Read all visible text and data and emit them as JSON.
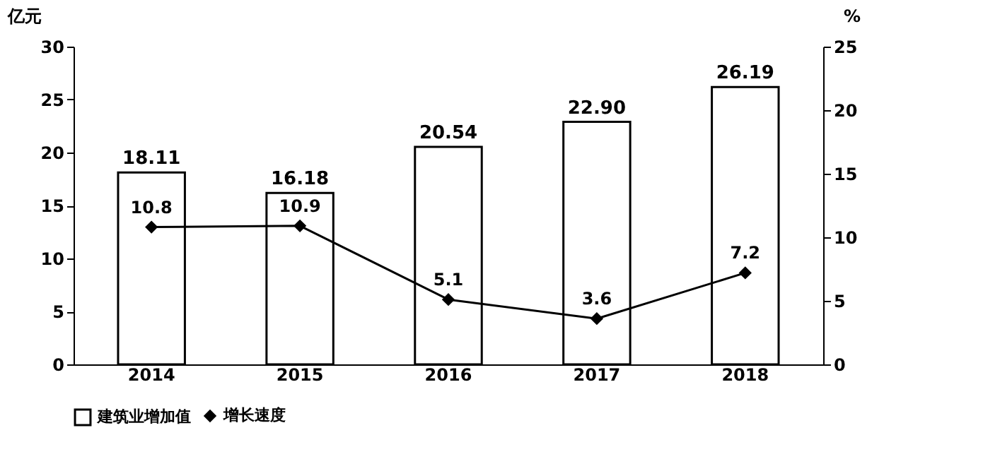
{
  "chart_data": {
    "type": "bar",
    "categories": [
      "2014",
      "2015",
      "2016",
      "2017",
      "2018"
    ],
    "ylabel": "亿元",
    "y2label": "%",
    "ylim": [
      0,
      30
    ],
    "yticks": [
      0,
      5,
      10,
      15,
      20,
      25,
      30
    ],
    "y2lim": [
      0,
      25
    ],
    "y2ticks": [
      0,
      5,
      10,
      15,
      20,
      25
    ],
    "legend": "bottom",
    "grid": false,
    "marker": "diamond",
    "series": [
      {
        "name": "建筑业增加值",
        "color": "#ffffff",
        "values": [
          18.11,
          16.18,
          20.54,
          22.9,
          26.19
        ],
        "value_labels": [
          "18.11",
          "16.18",
          "20.54",
          "22.90",
          "26.19"
        ]
      },
      {
        "name": "增长速度",
        "type": "line",
        "axis": "y2",
        "color": "#000000",
        "values": [
          10.8,
          10.9,
          5.1,
          3.6,
          7.2
        ],
        "value_labels": [
          "10.8",
          "10.9",
          "5.1",
          "3.6",
          "7.2"
        ]
      }
    ]
  }
}
